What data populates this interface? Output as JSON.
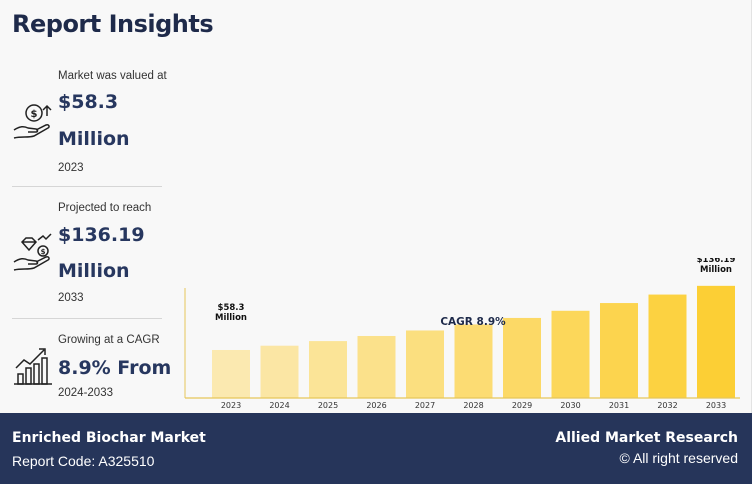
{
  "title": "Report Insights",
  "stats": [
    {
      "label": "Market was valued at",
      "value": "$58.3",
      "unit": "Million",
      "year": "2023",
      "icon": "money-hand-icon"
    },
    {
      "label": "Projected to reach",
      "value": "$136.19",
      "unit": "Million",
      "year": "2033",
      "icon": "growth-hand-icon"
    },
    {
      "label": "Growing at a CAGR",
      "value": "8.9% From",
      "year": "2024-2033",
      "icon": "bar-growth-icon"
    }
  ],
  "chart_data": {
    "type": "bar",
    "categories": [
      "2023",
      "2024",
      "2025",
      "2026",
      "2027",
      "2028",
      "2029",
      "2030",
      "2031",
      "2032",
      "2033"
    ],
    "values": [
      58.3,
      63.5,
      69.1,
      75.3,
      82.0,
      89.3,
      97.2,
      105.9,
      115.3,
      125.6,
      136.19
    ],
    "annotations": [
      {
        "category": "2023",
        "line1": "$58.3",
        "line2": "Million"
      },
      {
        "category": "2033",
        "line1": "$136.19",
        "line2": "Million"
      }
    ],
    "cagr_label": "CAGR 8.9%",
    "ylim": [
      0,
      170
    ],
    "colors": {
      "start": "#fbe9b0",
      "end": "#fccf35",
      "axis": "#e6c65a",
      "label": "#1e2a4a"
    }
  },
  "footer": {
    "market": "Enriched Biochar Market",
    "code": "Report Code: A325510",
    "brand": "Allied Market Research",
    "rights": "© All right reserved"
  }
}
